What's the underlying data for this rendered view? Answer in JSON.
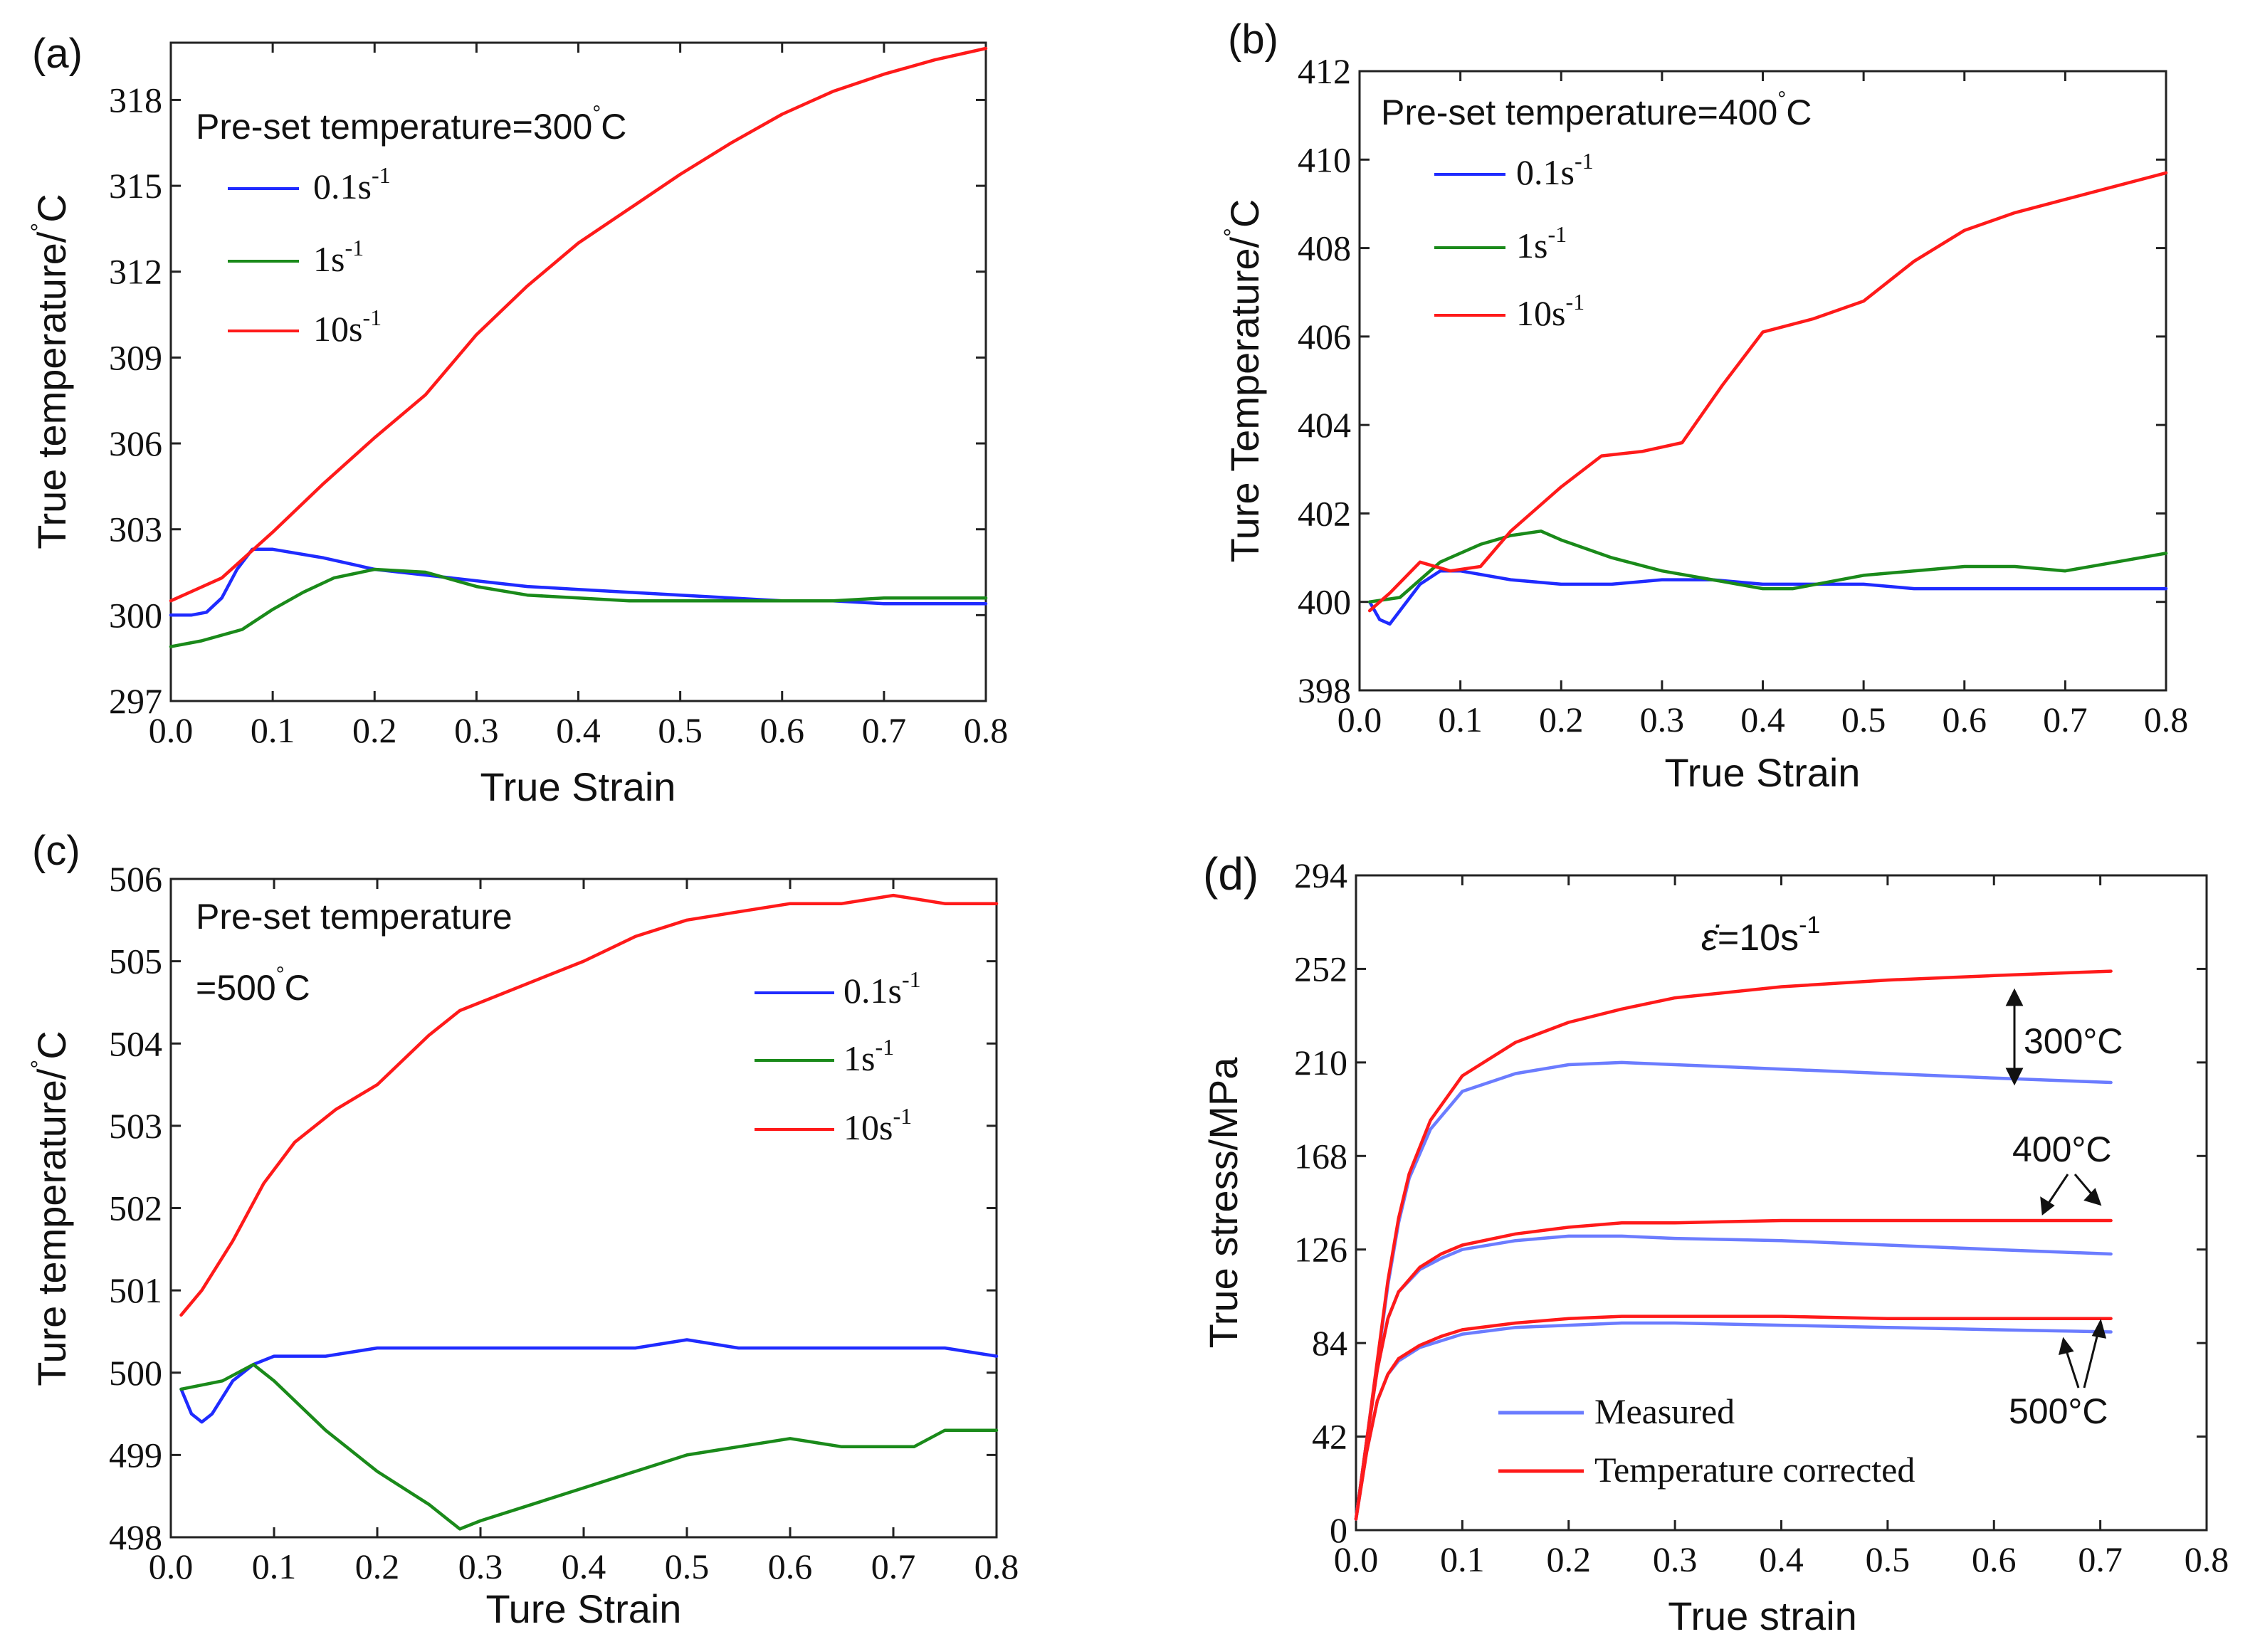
{
  "colors": {
    "blue": "#1f2bff",
    "green": "#1a8a1a",
    "red": "#ff1a1a",
    "lightblue": "#6b7cff",
    "axis": "#222222"
  },
  "chart_data": [
    {
      "id": "a",
      "type": "line",
      "panel_label": "(a)",
      "annotation": "Pre-set temperature=300",
      "annotation_unit": "C",
      "xlabel": "True Strain",
      "ylabel": "True temperature/",
      "ylabel_unit": "C",
      "xlim": [
        0.0,
        0.8
      ],
      "ylim": [
        297,
        320
      ],
      "xticks": [
        0.0,
        0.1,
        0.2,
        0.3,
        0.4,
        0.5,
        0.6,
        0.7,
        0.8
      ],
      "xtick_labels": [
        "0.0",
        "0.1",
        "0.2",
        "0.3",
        "0.4",
        "0.5",
        "0.6",
        "0.7",
        "0.8"
      ],
      "yticks": [
        297,
        300,
        303,
        306,
        309,
        312,
        315,
        318
      ],
      "ytick_labels": [
        "297",
        "300",
        "303",
        "306",
        "309",
        "312",
        "315",
        "318"
      ],
      "series": [
        {
          "name": "0.1",
          "legend_base": "0.1s",
          "legend_exp": "-1",
          "color": "blue",
          "x": [
            0.0,
            0.02,
            0.035,
            0.05,
            0.065,
            0.08,
            0.1,
            0.15,
            0.2,
            0.25,
            0.3,
            0.35,
            0.4,
            0.45,
            0.5,
            0.55,
            0.6,
            0.65,
            0.7,
            0.75,
            0.8
          ],
          "y": [
            300.0,
            300.0,
            300.1,
            300.6,
            301.6,
            302.3,
            302.3,
            302.0,
            301.6,
            301.4,
            301.2,
            301.0,
            300.9,
            300.8,
            300.7,
            300.6,
            300.5,
            300.5,
            300.4,
            300.4,
            300.4
          ]
        },
        {
          "name": "1",
          "legend_base": "1s",
          "legend_exp": "-1",
          "color": "green",
          "x": [
            0.0,
            0.03,
            0.07,
            0.1,
            0.13,
            0.16,
            0.2,
            0.25,
            0.3,
            0.35,
            0.4,
            0.45,
            0.5,
            0.55,
            0.6,
            0.65,
            0.7,
            0.75,
            0.8
          ],
          "y": [
            298.9,
            299.1,
            299.5,
            300.2,
            300.8,
            301.3,
            301.6,
            301.5,
            301.0,
            300.7,
            300.6,
            300.5,
            300.5,
            300.5,
            300.5,
            300.5,
            300.6,
            300.6,
            300.6
          ]
        },
        {
          "name": "10",
          "legend_base": "10s",
          "legend_exp": "-1",
          "color": "red",
          "x": [
            0.0,
            0.05,
            0.1,
            0.15,
            0.2,
            0.25,
            0.3,
            0.35,
            0.4,
            0.45,
            0.5,
            0.55,
            0.6,
            0.65,
            0.7,
            0.75,
            0.8
          ],
          "y": [
            300.5,
            301.3,
            302.9,
            304.6,
            306.2,
            307.7,
            309.8,
            311.5,
            313.0,
            314.2,
            315.4,
            316.5,
            317.5,
            318.3,
            318.9,
            319.4,
            319.8
          ]
        }
      ]
    },
    {
      "id": "b",
      "type": "line",
      "panel_label": "(b)",
      "annotation": "Pre-set temperature=400",
      "annotation_unit": "C",
      "xlabel": "True Strain",
      "ylabel": "Ture Temperature/",
      "ylabel_unit": "C",
      "xlim": [
        0.0,
        0.8
      ],
      "ylim": [
        398,
        412
      ],
      "xticks": [
        0.0,
        0.1,
        0.2,
        0.3,
        0.4,
        0.5,
        0.6,
        0.7,
        0.8
      ],
      "xtick_labels": [
        "0.0",
        "0.1",
        "0.2",
        "0.3",
        "0.4",
        "0.5",
        "0.6",
        "0.7",
        "0.8"
      ],
      "yticks": [
        398,
        400,
        402,
        404,
        406,
        408,
        410,
        412
      ],
      "ytick_labels": [
        "398",
        "400",
        "402",
        "404",
        "406",
        "408",
        "410",
        "412"
      ],
      "series": [
        {
          "name": "0.1",
          "legend_base": "0.1s",
          "legend_exp": "-1",
          "color": "blue",
          "x": [
            0.01,
            0.02,
            0.03,
            0.04,
            0.06,
            0.08,
            0.1,
            0.15,
            0.2,
            0.25,
            0.3,
            0.35,
            0.4,
            0.45,
            0.5,
            0.55,
            0.6,
            0.65,
            0.7,
            0.75,
            0.8
          ],
          "y": [
            400.0,
            399.6,
            399.5,
            399.8,
            400.4,
            400.7,
            400.7,
            400.5,
            400.4,
            400.4,
            400.5,
            400.5,
            400.4,
            400.4,
            400.4,
            400.3,
            400.3,
            400.3,
            400.3,
            400.3,
            400.3
          ]
        },
        {
          "name": "1",
          "legend_base": "1s",
          "legend_exp": "-1",
          "color": "green",
          "x": [
            0.01,
            0.04,
            0.08,
            0.12,
            0.15,
            0.18,
            0.2,
            0.25,
            0.3,
            0.35,
            0.4,
            0.43,
            0.5,
            0.55,
            0.6,
            0.65,
            0.7,
            0.75,
            0.8
          ],
          "y": [
            400.0,
            400.1,
            400.9,
            401.3,
            401.5,
            401.6,
            401.4,
            401.0,
            400.7,
            400.5,
            400.3,
            400.3,
            400.6,
            400.7,
            400.8,
            400.8,
            400.7,
            400.9,
            401.1
          ]
        },
        {
          "name": "10",
          "legend_base": "10s",
          "legend_exp": "-1",
          "color": "red",
          "x": [
            0.01,
            0.03,
            0.06,
            0.09,
            0.12,
            0.15,
            0.2,
            0.24,
            0.28,
            0.32,
            0.36,
            0.4,
            0.45,
            0.5,
            0.55,
            0.6,
            0.65,
            0.7,
            0.75,
            0.8
          ],
          "y": [
            399.8,
            400.2,
            400.9,
            400.7,
            400.8,
            401.6,
            402.6,
            403.3,
            403.4,
            403.6,
            404.9,
            406.1,
            406.4,
            406.8,
            407.7,
            408.4,
            408.8,
            409.1,
            409.4,
            409.7
          ]
        }
      ]
    },
    {
      "id": "c",
      "type": "line",
      "panel_label": "(c)",
      "annotation": "Pre-set temperature",
      "annotation2": "=500",
      "annotation_unit": "C",
      "xlabel": "Ture Strain",
      "ylabel": "Ture temperature/",
      "ylabel_unit": "C",
      "xlim": [
        0.0,
        0.8
      ],
      "ylim": [
        498,
        506
      ],
      "xticks": [
        0.0,
        0.1,
        0.2,
        0.3,
        0.4,
        0.5,
        0.6,
        0.7,
        0.8
      ],
      "xtick_labels": [
        "0.0",
        "0.1",
        "0.2",
        "0.3",
        "0.4",
        "0.5",
        "0.6",
        "0.7",
        "0.8"
      ],
      "yticks": [
        498,
        499,
        500,
        501,
        502,
        503,
        504,
        505,
        506
      ],
      "ytick_labels": [
        "498",
        "499",
        "500",
        "501",
        "502",
        "503",
        "504",
        "505",
        "506"
      ],
      "series": [
        {
          "name": "0.1",
          "legend_base": "0.1s",
          "legend_exp": "-1",
          "color": "blue",
          "x": [
            0.01,
            0.02,
            0.03,
            0.04,
            0.06,
            0.08,
            0.1,
            0.15,
            0.2,
            0.25,
            0.3,
            0.35,
            0.4,
            0.45,
            0.5,
            0.55,
            0.6,
            0.65,
            0.7,
            0.75,
            0.8
          ],
          "y": [
            499.8,
            499.5,
            499.4,
            499.5,
            499.9,
            500.1,
            500.2,
            500.2,
            500.3,
            500.3,
            500.3,
            500.3,
            500.3,
            500.3,
            500.4,
            500.3,
            500.3,
            500.3,
            500.3,
            500.3,
            500.2
          ]
        },
        {
          "name": "1",
          "legend_base": "1s",
          "legend_exp": "-1",
          "color": "green",
          "x": [
            0.01,
            0.05,
            0.08,
            0.1,
            0.15,
            0.2,
            0.25,
            0.28,
            0.3,
            0.35,
            0.4,
            0.45,
            0.5,
            0.55,
            0.6,
            0.65,
            0.7,
            0.72,
            0.75,
            0.8
          ],
          "y": [
            499.8,
            499.9,
            500.1,
            499.9,
            499.3,
            498.8,
            498.4,
            498.1,
            498.2,
            498.4,
            498.6,
            498.8,
            499.0,
            499.1,
            499.2,
            499.1,
            499.1,
            499.1,
            499.3,
            499.3
          ]
        },
        {
          "name": "10",
          "legend_base": "10s",
          "legend_exp": "-1",
          "color": "red",
          "x": [
            0.01,
            0.03,
            0.06,
            0.09,
            0.12,
            0.16,
            0.2,
            0.25,
            0.28,
            0.32,
            0.36,
            0.4,
            0.45,
            0.5,
            0.55,
            0.6,
            0.65,
            0.7,
            0.75,
            0.8
          ],
          "y": [
            500.7,
            501.0,
            501.6,
            502.3,
            502.8,
            503.2,
            503.5,
            504.1,
            504.4,
            504.6,
            504.8,
            505.0,
            505.3,
            505.5,
            505.6,
            505.7,
            505.7,
            505.8,
            505.7,
            505.7
          ]
        }
      ]
    },
    {
      "id": "d",
      "type": "line",
      "panel_label": "(d)",
      "annotation": "=10s",
      "annotation_exp": "-1",
      "xlabel": "True strain",
      "ylabel": "True stress/MPa",
      "xlim": [
        0.0,
        0.8
      ],
      "ylim": [
        0,
        294
      ],
      "xticks": [
        0.0,
        0.1,
        0.2,
        0.3,
        0.4,
        0.5,
        0.6,
        0.7,
        0.8
      ],
      "xtick_labels": [
        "0.0",
        "0.1",
        "0.2",
        "0.3",
        "0.4",
        "0.5",
        "0.6",
        "0.7",
        "0.8"
      ],
      "yticks": [
        0,
        42,
        84,
        126,
        168,
        210,
        252,
        294
      ],
      "ytick_labels": [
        "0",
        "42",
        "84",
        "126",
        "168",
        "210",
        "252",
        "294"
      ],
      "legend": [
        "Measured",
        "Temperature corrected"
      ],
      "temp_labels": [
        "300°C",
        "400°C",
        "500°C"
      ],
      "series": [
        {
          "name": "Measured 300°C",
          "color": "lightblue",
          "x": [
            0.0,
            0.01,
            0.02,
            0.03,
            0.04,
            0.05,
            0.07,
            0.1,
            0.15,
            0.2,
            0.25,
            0.3,
            0.4,
            0.5,
            0.6,
            0.71
          ],
          "y": [
            5,
            40,
            75,
            110,
            138,
            158,
            180,
            197,
            205,
            209,
            210,
            209,
            207,
            205,
            203,
            201
          ]
        },
        {
          "name": "Corrected 300°C",
          "color": "red",
          "x": [
            0.0,
            0.01,
            0.02,
            0.03,
            0.04,
            0.05,
            0.07,
            0.1,
            0.15,
            0.2,
            0.25,
            0.3,
            0.4,
            0.5,
            0.6,
            0.71
          ],
          "y": [
            5,
            40,
            76,
            112,
            140,
            160,
            184,
            204,
            219,
            228,
            234,
            239,
            244,
            247,
            249,
            251
          ]
        },
        {
          "name": "Measured 400°C",
          "color": "lightblue",
          "x": [
            0.0,
            0.01,
            0.02,
            0.03,
            0.04,
            0.06,
            0.08,
            0.1,
            0.15,
            0.2,
            0.25,
            0.3,
            0.4,
            0.5,
            0.6,
            0.71
          ],
          "y": [
            5,
            40,
            72,
            95,
            107,
            117,
            122,
            126,
            130,
            132,
            132,
            131,
            130,
            128,
            126,
            124
          ]
        },
        {
          "name": "Corrected 400°C",
          "color": "red",
          "x": [
            0.0,
            0.01,
            0.02,
            0.03,
            0.04,
            0.06,
            0.08,
            0.1,
            0.15,
            0.2,
            0.25,
            0.3,
            0.4,
            0.5,
            0.6,
            0.71
          ],
          "y": [
            5,
            40,
            72,
            95,
            107,
            118,
            124,
            128,
            133,
            136,
            138,
            138,
            139,
            139,
            139,
            139
          ]
        },
        {
          "name": "Measured 500°C",
          "color": "lightblue",
          "x": [
            0.0,
            0.01,
            0.02,
            0.03,
            0.04,
            0.06,
            0.08,
            0.1,
            0.15,
            0.2,
            0.25,
            0.3,
            0.4,
            0.5,
            0.6,
            0.71
          ],
          "y": [
            5,
            35,
            58,
            70,
            76,
            82,
            85,
            88,
            91,
            92,
            93,
            93,
            92,
            91,
            90,
            89
          ]
        },
        {
          "name": "Corrected 500°C",
          "color": "red",
          "x": [
            0.0,
            0.01,
            0.02,
            0.03,
            0.04,
            0.06,
            0.08,
            0.1,
            0.15,
            0.2,
            0.25,
            0.3,
            0.4,
            0.5,
            0.6,
            0.71
          ],
          "y": [
            5,
            35,
            58,
            70,
            77,
            83,
            87,
            90,
            93,
            95,
            96,
            96,
            96,
            95,
            95,
            95
          ]
        }
      ]
    }
  ]
}
